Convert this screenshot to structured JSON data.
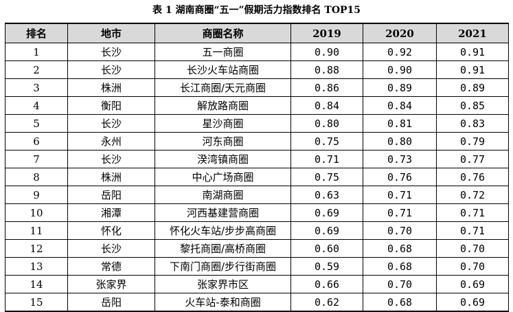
{
  "caption": "表 1 湖南商圈“五一”假期活力指数排名 TOP15",
  "headers": {
    "rank": "排名",
    "city": "地市",
    "area": "商圈名称",
    "y2019": "2019",
    "y2020": "2020",
    "y2021": "2021"
  },
  "rows": [
    {
      "rank": "1",
      "city": "长沙",
      "area": "五一商圈",
      "y2019": "0.90",
      "y2020": "0.92",
      "y2021": "0.91"
    },
    {
      "rank": "2",
      "city": "长沙",
      "area": "长沙火车站商圈",
      "y2019": "0.88",
      "y2020": "0.90",
      "y2021": "0.91"
    },
    {
      "rank": "3",
      "city": "株洲",
      "area": "长江商圈/天元商圈",
      "y2019": "0.86",
      "y2020": "0.89",
      "y2021": "0.89"
    },
    {
      "rank": "4",
      "city": "衡阳",
      "area": "解放路商圈",
      "y2019": "0.84",
      "y2020": "0.84",
      "y2021": "0.85"
    },
    {
      "rank": "5",
      "city": "长沙",
      "area": "星沙商圈",
      "y2019": "0.80",
      "y2020": "0.81",
      "y2021": "0.83"
    },
    {
      "rank": "6",
      "city": "永州",
      "area": "河东商圈",
      "y2019": "0.75",
      "y2020": "0.80",
      "y2021": "0.79"
    },
    {
      "rank": "7",
      "city": "长沙",
      "area": "湀湾镇商圈",
      "y2019": "0.71",
      "y2020": "0.73",
      "y2021": "0.77"
    },
    {
      "rank": "8",
      "city": "株洲",
      "area": "中心广场商圈",
      "y2019": "0.75",
      "y2020": "0.76",
      "y2021": "0.76"
    },
    {
      "rank": "9",
      "city": "岳阳",
      "area": "南湖商圈",
      "y2019": "0.63",
      "y2020": "0.71",
      "y2021": "0.72"
    },
    {
      "rank": "10",
      "city": "湘潭",
      "area": "河西基建营商圈",
      "y2019": "0.69",
      "y2020": "0.71",
      "y2021": "0.71"
    },
    {
      "rank": "11",
      "city": "怀化",
      "area": "怀化火车站/步步高商圈",
      "y2019": "0.69",
      "y2020": "0.70",
      "y2021": "0.71"
    },
    {
      "rank": "12",
      "city": "长沙",
      "area": "黎托商圈/高桥商圈",
      "y2019": "0.60",
      "y2020": "0.68",
      "y2021": "0.70"
    },
    {
      "rank": "13",
      "city": "常德",
      "area": "下南门商圈/步行街商圈",
      "y2019": "0.59",
      "y2020": "0.68",
      "y2021": "0.70"
    },
    {
      "rank": "14",
      "city": "张家界",
      "area": "张家界市区",
      "y2019": "0.66",
      "y2020": "0.70",
      "y2021": "0.69"
    },
    {
      "rank": "15",
      "city": "岳阳",
      "area": "火车站-泰和商圈",
      "y2019": "0.62",
      "y2020": "0.68",
      "y2021": "0.69"
    }
  ]
}
